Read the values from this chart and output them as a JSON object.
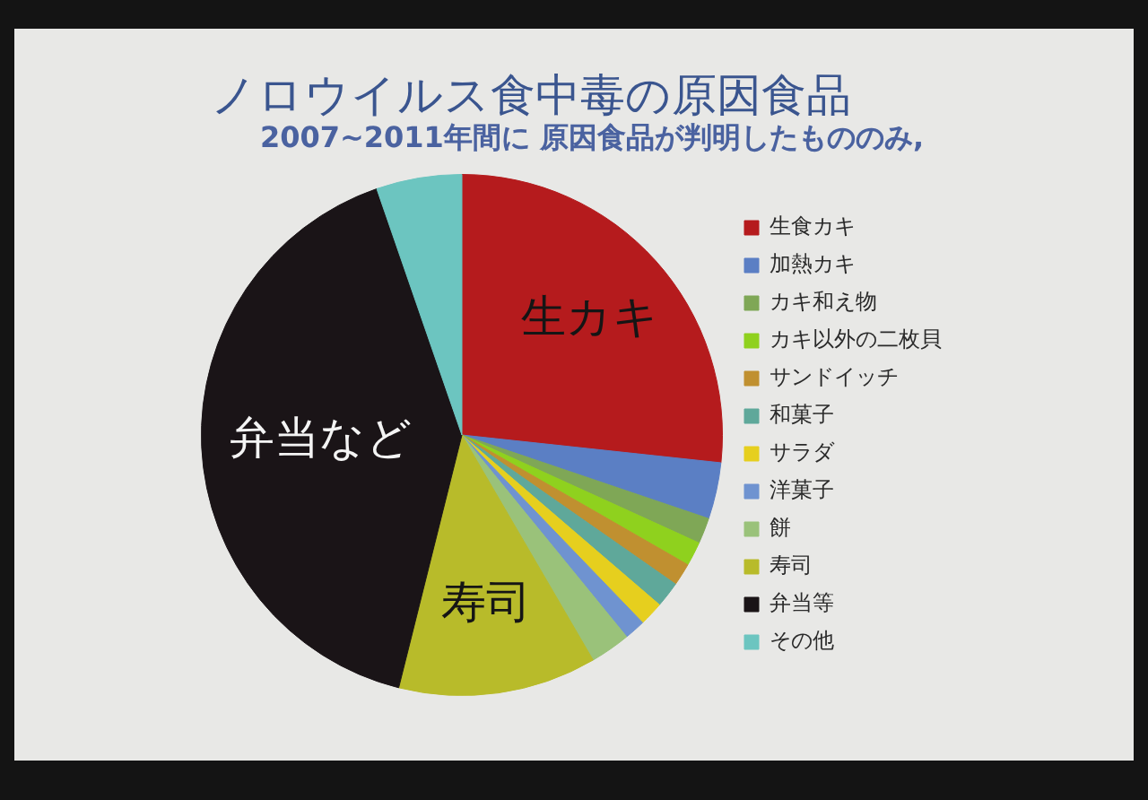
{
  "chart_data": {
    "type": "pie",
    "title": "ノロウイルス食中毒の原因食品",
    "subtitle": "2007~2011年間に 原因食品が判明したもののみ,",
    "categories": [
      "生食カキ",
      "加熱カキ",
      "カキ和え物",
      "カキ以外の二枚貝",
      "サンドイッチ",
      "和菓子",
      "サラダ",
      "洋菓子",
      "餅",
      "寿司",
      "弁当等",
      "その他"
    ],
    "values": [
      26.7,
      3.5,
      1.6,
      1.5,
      1.4,
      1.6,
      1.5,
      1.3,
      2.5,
      12.3,
      40.8,
      5.3
    ],
    "colors": [
      "#b51b1d",
      "#5b7fc4",
      "#7fa756",
      "#8fd11e",
      "#c09030",
      "#5fa89a",
      "#e6cf1e",
      "#6f93d0",
      "#9ac27a",
      "#b8bb2a",
      "#1a1417",
      "#6cc5c0"
    ],
    "value_labels": [
      "生カキ",
      null,
      null,
      null,
      null,
      null,
      null,
      null,
      null,
      "寿司",
      "弁当など",
      null
    ],
    "legend": "right"
  }
}
